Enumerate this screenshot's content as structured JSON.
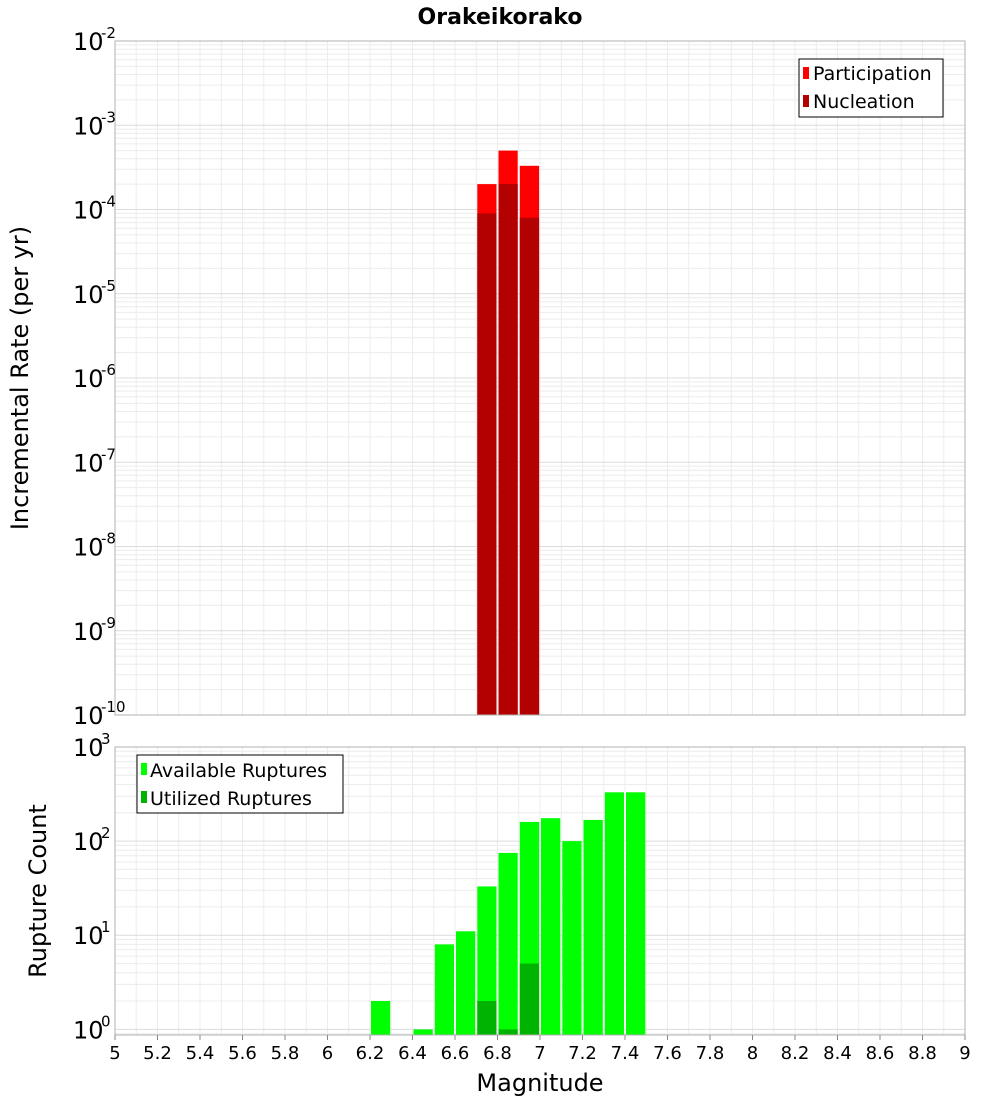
{
  "chart_data": [
    {
      "type": "bar",
      "title": "Orakeikorako",
      "ylabel": "Incremental Rate (per yr)",
      "yscale": "log",
      "ylim_exp": [
        -10,
        -2
      ],
      "ytick_exps": [
        -10,
        -9,
        -8,
        -7,
        -6,
        -5,
        -4,
        -3,
        -2
      ],
      "xlim": [
        5,
        9
      ],
      "bin_width": 0.1,
      "grid": true,
      "legend_position": "top-right",
      "series": [
        {
          "name": "Participation",
          "color": "#ff0000",
          "bins": [
            {
              "x": 6.75,
              "y": 0.0002
            },
            {
              "x": 6.85,
              "y": 0.0005
            },
            {
              "x": 6.95,
              "y": 0.00033
            }
          ]
        },
        {
          "name": "Nucleation",
          "color": "#b30000",
          "bins": [
            {
              "x": 6.75,
              "y": 9e-05
            },
            {
              "x": 6.85,
              "y": 0.0002
            },
            {
              "x": 6.95,
              "y": 8e-05
            }
          ]
        }
      ]
    },
    {
      "type": "bar",
      "ylabel": "Rupture Count",
      "xlabel": "Magnitude",
      "yscale": "log",
      "ylim_exp": [
        -0.06,
        3
      ],
      "ytick_exps": [
        0,
        1,
        2,
        3
      ],
      "xlim": [
        5,
        9
      ],
      "xticks": [
        "5",
        "5.2",
        "5.4",
        "5.6",
        "5.8",
        "6",
        "6.2",
        "6.4",
        "6.6",
        "6.8",
        "7",
        "7.2",
        "7.4",
        "7.6",
        "7.8",
        "8",
        "8.2",
        "8.4",
        "8.6",
        "8.8",
        "9"
      ],
      "bin_width": 0.1,
      "grid": true,
      "legend_position": "top-left",
      "series": [
        {
          "name": "Available Ruptures",
          "color": "#00ff00",
          "bins": [
            {
              "x": 6.25,
              "y": 2
            },
            {
              "x": 6.45,
              "y": 1
            },
            {
              "x": 6.55,
              "y": 8
            },
            {
              "x": 6.65,
              "y": 11
            },
            {
              "x": 6.75,
              "y": 33
            },
            {
              "x": 6.85,
              "y": 75
            },
            {
              "x": 6.95,
              "y": 160
            },
            {
              "x": 7.05,
              "y": 175
            },
            {
              "x": 7.15,
              "y": 100
            },
            {
              "x": 7.25,
              "y": 168
            },
            {
              "x": 7.35,
              "y": 330
            },
            {
              "x": 7.45,
              "y": 330
            }
          ]
        },
        {
          "name": "Utilized Ruptures",
          "color": "#00b300",
          "bins": [
            {
              "x": 6.75,
              "y": 2
            },
            {
              "x": 6.85,
              "y": 1
            },
            {
              "x": 6.95,
              "y": 5
            }
          ]
        }
      ]
    }
  ]
}
